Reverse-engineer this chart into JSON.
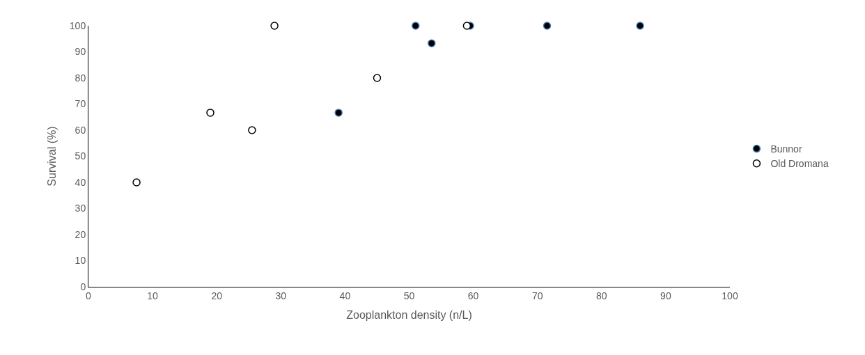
{
  "chart_data": {
    "type": "scatter",
    "xlabel": "Zooplankton density (n/L)",
    "ylabel": "Survival (%)",
    "xlim": [
      0,
      100
    ],
    "xticks": [
      0,
      10,
      20,
      30,
      40,
      50,
      60,
      70,
      80,
      90,
      100
    ],
    "ylim": [
      0,
      100
    ],
    "yticks": [
      0,
      10,
      20,
      30,
      40,
      50,
      60,
      70,
      80,
      90,
      100
    ],
    "grid": false,
    "legend": "right",
    "marker": "circle",
    "series": [
      {
        "name": "Bunnor",
        "color": "#000000",
        "x": [
          39,
          51,
          53.5,
          59.5,
          71.5,
          86
        ],
        "values": [
          66.7,
          100,
          93.3,
          100,
          100,
          100
        ]
      },
      {
        "name": "Old Dromana",
        "color": "#ffffff",
        "x": [
          7.5,
          19,
          25.5,
          29,
          45,
          59
        ],
        "values": [
          40,
          66.7,
          60,
          100,
          80,
          100
        ]
      }
    ]
  }
}
